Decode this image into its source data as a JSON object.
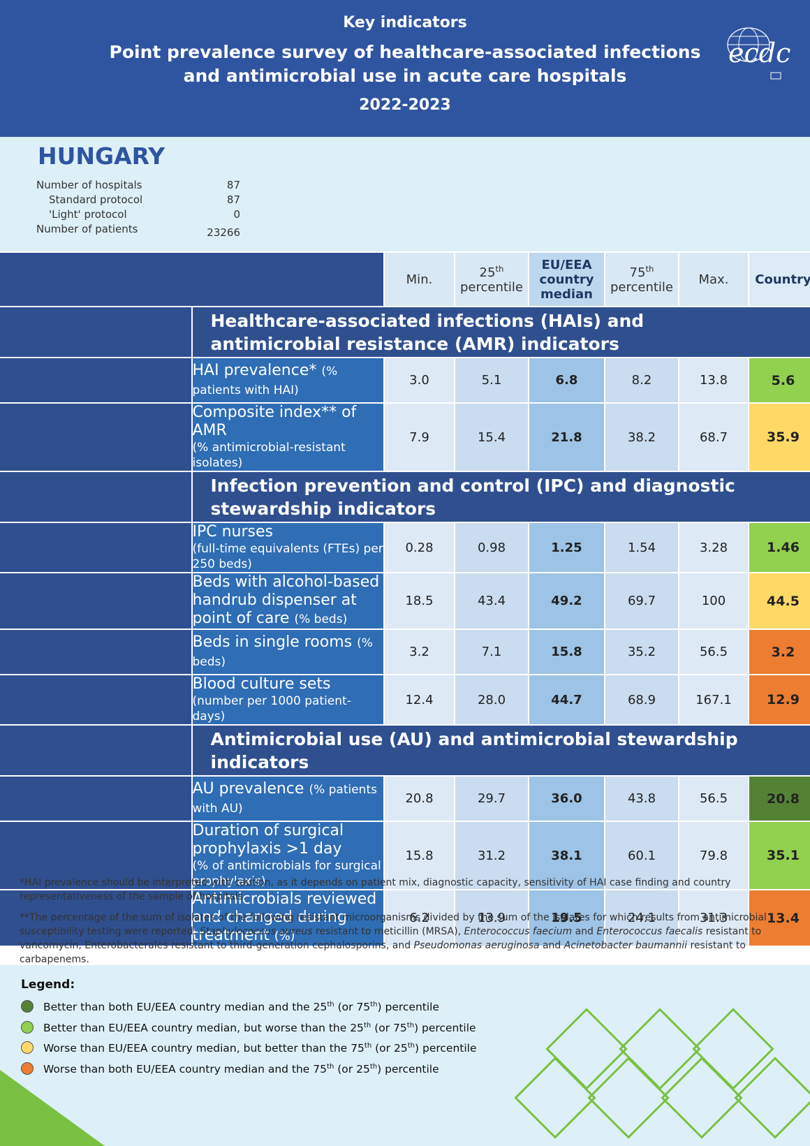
{
  "header": {
    "label": "Key indicators",
    "title": [
      "Point prevalence survey of healthcare-associated infections",
      "and antimicrobial use in acute care hospitals"
    ],
    "period": "2022-2023",
    "logo": "ecdc"
  },
  "country": {
    "name": "HUNGARY",
    "stats": [
      {
        "label": "Number of hospitals",
        "value": "87"
      },
      {
        "label": "Standard protocol",
        "value": "87"
      },
      {
        "label": "'Light' protocol",
        "value": "0"
      },
      {
        "label": "Number of patients",
        "value": "23266"
      }
    ]
  },
  "table": {
    "columns": [
      {
        "label": "Min."
      },
      {
        "number": "25",
        "suffix": "th",
        "label": "percentile"
      },
      {
        "label": "EU/EEA country median"
      },
      {
        "number": "75",
        "suffix": "th",
        "label": "percentile"
      },
      {
        "label": "Max."
      },
      {
        "label": "Country"
      }
    ],
    "sections": [
      {
        "title": "Healthcare-associated infections (HAIs) and antimicrobial resistance (AMR) indicators",
        "rows": [
          {
            "label": "HAI prevalence*",
            "note": "(% patients with HAI)",
            "values": [
              "3.0",
              "5.1",
              "6.8",
              "8.2",
              "13.8",
              "5.6"
            ],
            "country_color": "#92d050"
          },
          {
            "label": "Composite index** of AMR",
            "note": "(% antimicrobial-resistant isolates)",
            "values": [
              "7.9",
              "15.4",
              "21.8",
              "38.2",
              "68.7",
              "35.9"
            ],
            "country_color": "#ffd966"
          }
        ]
      },
      {
        "title": "Infection prevention and control (IPC) and diagnostic stewardship indicators",
        "rows": [
          {
            "label": "IPC nurses",
            "note": "(full-time equivalents (FTEs) per 250 beds)",
            "values": [
              "0.28",
              "0.98",
              "1.25",
              "1.54",
              "3.28",
              "1.46"
            ],
            "country_color": "#92d050"
          },
          {
            "label": "Beds with alcohol-based handrub dispenser at point of care",
            "note": "(% beds)",
            "values": [
              "18.5",
              "43.4",
              "49.2",
              "69.7",
              "100",
              "44.5"
            ],
            "country_color": "#ffd966"
          },
          {
            "label": "Beds in single rooms",
            "note": "(% beds)",
            "values": [
              "3.2",
              "7.1",
              "15.8",
              "35.2",
              "56.5",
              "3.2"
            ],
            "country_color": "#ed7d31"
          },
          {
            "label": "Blood culture sets",
            "note": "(number per 1000 patient-days)",
            "values": [
              "12.4",
              "28.0",
              "44.7",
              "68.9",
              "167.1",
              "12.9"
            ],
            "country_color": "#ed7d31"
          }
        ]
      },
      {
        "title": "Antimicrobial use (AU) and antimicrobial stewardship indicators",
        "rows": [
          {
            "label": "AU prevalence",
            "note": "(% patients with AU)",
            "values": [
              "20.8",
              "29.7",
              "36.0",
              "43.8",
              "56.5",
              "20.8"
            ],
            "country_color": "#548235"
          },
          {
            "label": "Duration of surgical prophylaxis >1 day",
            "note": "(% of antimicrobials for surgical prophylaxis)",
            "values": [
              "15.8",
              "31.2",
              "38.1",
              "60.1",
              "79.8",
              "35.1"
            ],
            "country_color": "#92d050"
          },
          {
            "label": "Antimicrobials reviewed and changed during treatment",
            "note": "(%)",
            "values": [
              "6.2",
              "13.9",
              "19.5",
              "24.1",
              "31.3",
              "13.4"
            ],
            "country_color": "#ed7d31"
          }
        ]
      }
    ]
  },
  "footnotes": [
    [
      "*HAI prevalence should be interpreted with caution, as it depends on patient mix, diagnostic capacity, sensitivity of HAI case finding and country representativeness of the sample of hospitals."
    ],
    [
      "**The percentage of the sum of isolates of the following resistant microorganisms divided by the sum of the isolates for which results from antimicrobial susceptibility testing were reported: ",
      "Staphylococcus aureus",
      " resistant to meticillin (MRSA), ",
      "Enterococcus faecium",
      " and ",
      "Enterococcus faecalis",
      " resistant to vancomycin, Enterobacterales resistant to third-generation cephalosporins, and ",
      "Pseudomonas aeruginosa",
      " and ",
      "Acinetobacter baumannii",
      " resistant to carbapenems."
    ]
  ],
  "legend": {
    "title": "Legend:",
    "items": [
      {
        "color": "#548235",
        "text": [
          "Better than both EU/EEA country median and the 25",
          "th",
          " (or 75",
          "th",
          ") percentile"
        ]
      },
      {
        "color": "#92d050",
        "text": [
          "Better than EU/EEA country median, but worse than the 25",
          "th",
          " (or 75",
          "th",
          ") percentile"
        ]
      },
      {
        "color": "#ffd966",
        "text": [
          "Worse than EU/EEA country median, but better than the 75",
          "th",
          " (or 25",
          "th",
          ") percentile"
        ]
      },
      {
        "color": "#ed7d31",
        "text": [
          "Worse than both EU/EEA country median and the 75",
          "th",
          " (or 25",
          "th",
          ") percentile"
        ]
      }
    ]
  }
}
